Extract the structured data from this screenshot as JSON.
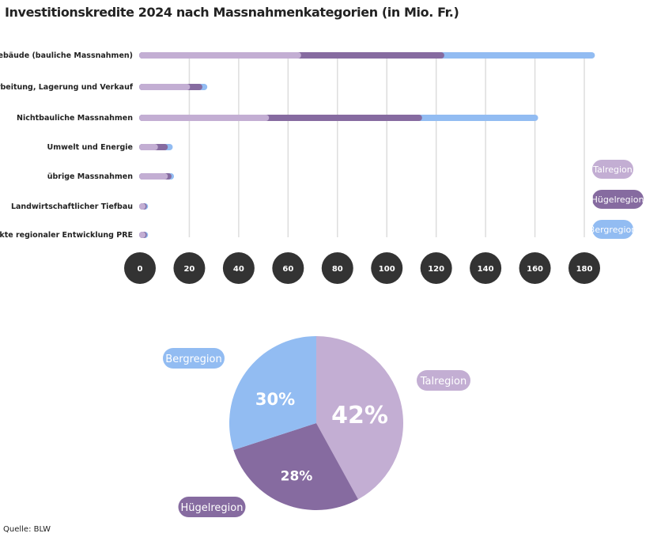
{
  "title": "Investitionskredite 2024 nach Massnahmenkategorien (in Mio. Fr.)",
  "source": "Quelle: BLW",
  "colors": {
    "Talregion": "#c3aed3",
    "Hügelregion": "#866ba0",
    "Bergregion": "#92bcf2"
  },
  "chart_data": [
    {
      "type": "bar",
      "orientation": "horizontal",
      "stacked": true,
      "categories": [
        "Ökonomiegebäude (bauliche Massnahmen)",
        "Verarbeitung, Lagerung und Verkauf",
        "Nichtbauliche Massnahmen",
        "Umwelt und Energie",
        "übrige Massnahmen",
        "Landwirtschaftlicher Tiefbau",
        "Projekte regionaler Entwicklung PRE"
      ],
      "series": [
        {
          "name": "Talregion",
          "values": [
            64,
            19,
            51,
            6,
            10,
            1,
            1
          ]
        },
        {
          "name": "Hügelregion",
          "values": [
            58,
            5,
            62,
            4,
            1.5,
            0.5,
            0.5
          ]
        },
        {
          "name": "Bergregion",
          "values": [
            61,
            2,
            47,
            2,
            1,
            0.5,
            0.5
          ]
        }
      ],
      "xticks": [
        0,
        20,
        40,
        60,
        80,
        100,
        120,
        140,
        160,
        180
      ],
      "xlim": [
        0,
        180
      ],
      "grid": true,
      "legend": "right"
    },
    {
      "type": "pie",
      "labels": [
        "Talregion",
        "Hügelregion",
        "Bergregion"
      ],
      "values": [
        42,
        28,
        30
      ],
      "value_labels": [
        "42%",
        "28%",
        "30%"
      ]
    }
  ]
}
